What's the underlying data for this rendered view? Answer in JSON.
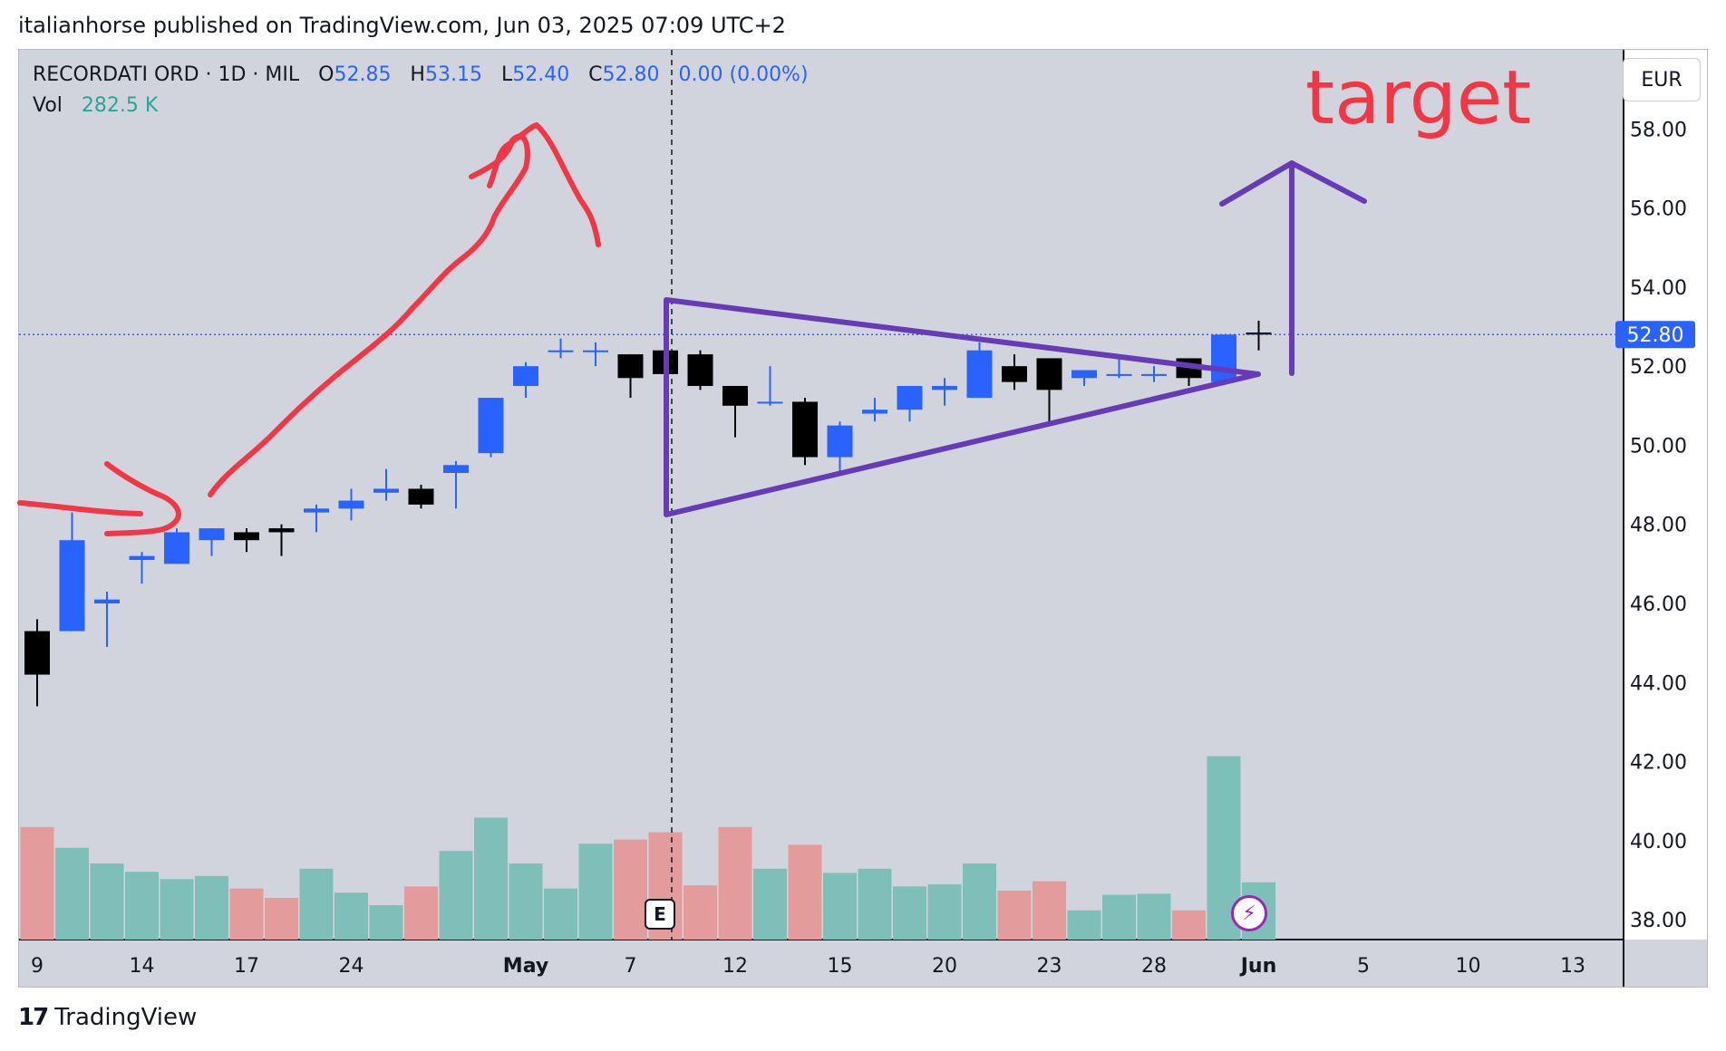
{
  "header": {
    "published_line": "italianhorse published on TradingView.com, Jun 03, 2025 07:09 UTC+2"
  },
  "legend": {
    "symbol": "RECORDATI ORD · 1D · MIL",
    "o_label": "O",
    "o_value": "52.85",
    "h_label": "H",
    "h_value": "53.15",
    "l_label": "L",
    "l_value": "52.40",
    "c_label": "C",
    "c_value": "52.80",
    "change": "0.00 (0.00%)",
    "vol_label": "Vol",
    "vol_value": "282.5 K"
  },
  "currency_button": "EUR",
  "annotation_text": "target",
  "earnings_badge": "E",
  "footer": {
    "logo_mark": "17",
    "brand": "TradingView"
  },
  "colors": {
    "background": "#d1d4dc",
    "up_candle": "#2962ff",
    "down_candle": "#000000",
    "vol_up": "#7fbfba",
    "vol_down": "#e39b9b",
    "drawing_red": "#f23645",
    "drawing_purple": "#673ab7",
    "price_label_bg": "#2962ff"
  },
  "chart_data": {
    "type": "candlestick",
    "y_axis": {
      "range": [
        37.5,
        60.0
      ],
      "ticks": [
        "58.00",
        "56.00",
        "54.00",
        "52.00",
        "50.00",
        "48.00",
        "46.00",
        "44.00",
        "42.00",
        "40.00",
        "38.00"
      ],
      "current_price_label": "52.80"
    },
    "x_axis": {
      "ticks": [
        {
          "label": "9",
          "i": 0
        },
        {
          "label": "14",
          "i": 3
        },
        {
          "label": "17",
          "i": 6
        },
        {
          "label": "24",
          "i": 9
        },
        {
          "label": "May",
          "i": 14
        },
        {
          "label": "7",
          "i": 17
        },
        {
          "label": "12",
          "i": 20
        },
        {
          "label": "15",
          "i": 23
        },
        {
          "label": "20",
          "i": 26
        },
        {
          "label": "23",
          "i": 29
        },
        {
          "label": "28",
          "i": 32
        },
        {
          "label": "Jun",
          "i": 35
        },
        {
          "label": "5",
          "i": 38
        },
        {
          "label": "10",
          "i": 41
        },
        {
          "label": "13",
          "i": 44
        }
      ]
    },
    "candles": [
      {
        "o": 45.3,
        "h": 45.6,
        "l": 43.4,
        "c": 44.2
      },
      {
        "o": 45.3,
        "h": 48.3,
        "l": 45.3,
        "c": 47.6
      },
      {
        "o": 46.0,
        "h": 46.3,
        "l": 44.9,
        "c": 46.1
      },
      {
        "o": 47.1,
        "h": 47.3,
        "l": 46.5,
        "c": 47.2
      },
      {
        "o": 47.0,
        "h": 47.9,
        "l": 47.0,
        "c": 47.8
      },
      {
        "o": 47.6,
        "h": 47.9,
        "l": 47.2,
        "c": 47.9
      },
      {
        "o": 47.8,
        "h": 47.9,
        "l": 47.3,
        "c": 47.6
      },
      {
        "o": 47.9,
        "h": 48.0,
        "l": 47.2,
        "c": 47.8
      },
      {
        "o": 48.3,
        "h": 48.5,
        "l": 47.8,
        "c": 48.4
      },
      {
        "o": 48.4,
        "h": 48.9,
        "l": 48.1,
        "c": 48.6
      },
      {
        "o": 48.8,
        "h": 49.4,
        "l": 48.6,
        "c": 48.9
      },
      {
        "o": 48.9,
        "h": 49.0,
        "l": 48.4,
        "c": 48.5
      },
      {
        "o": 49.3,
        "h": 49.6,
        "l": 48.4,
        "c": 49.5
      },
      {
        "o": 49.8,
        "h": 51.2,
        "l": 49.7,
        "c": 51.2
      },
      {
        "o": 51.5,
        "h": 52.1,
        "l": 51.2,
        "c": 52.0
      },
      {
        "o": 52.4,
        "h": 52.7,
        "l": 52.2,
        "c": 52.4
      },
      {
        "o": 52.4,
        "h": 52.6,
        "l": 52.0,
        "c": 52.4
      },
      {
        "o": 52.3,
        "h": 52.3,
        "l": 51.2,
        "c": 51.7
      },
      {
        "o": 52.4,
        "h": 52.5,
        "l": 51.5,
        "c": 51.8
      },
      {
        "o": 52.3,
        "h": 52.4,
        "l": 51.4,
        "c": 51.5
      },
      {
        "o": 51.5,
        "h": 51.5,
        "l": 50.2,
        "c": 51.0
      },
      {
        "o": 51.1,
        "h": 52.0,
        "l": 51.0,
        "c": 51.1
      },
      {
        "o": 51.1,
        "h": 51.2,
        "l": 49.5,
        "c": 49.7
      },
      {
        "o": 49.7,
        "h": 50.6,
        "l": 49.3,
        "c": 50.5
      },
      {
        "o": 50.8,
        "h": 51.2,
        "l": 50.6,
        "c": 50.9
      },
      {
        "o": 50.9,
        "h": 51.5,
        "l": 50.6,
        "c": 51.5
      },
      {
        "o": 51.4,
        "h": 51.7,
        "l": 51.0,
        "c": 51.5
      },
      {
        "o": 51.2,
        "h": 52.6,
        "l": 51.2,
        "c": 52.4
      },
      {
        "o": 52.0,
        "h": 52.3,
        "l": 51.4,
        "c": 51.6
      },
      {
        "o": 52.2,
        "h": 52.2,
        "l": 50.5,
        "c": 51.4
      },
      {
        "o": 51.7,
        "h": 51.9,
        "l": 51.5,
        "c": 51.9
      },
      {
        "o": 51.8,
        "h": 52.2,
        "l": 51.7,
        "c": 51.8
      },
      {
        "o": 51.8,
        "h": 52.0,
        "l": 51.6,
        "c": 51.8
      },
      {
        "o": 52.2,
        "h": 52.2,
        "l": 51.5,
        "c": 51.7
      },
      {
        "o": 51.6,
        "h": 52.8,
        "l": 51.6,
        "c": 52.8
      },
      {
        "o": 52.85,
        "h": 53.15,
        "l": 52.4,
        "c": 52.8
      }
    ],
    "volume_scale_max": 1000,
    "volume": [
      {
        "v": 540,
        "up": false
      },
      {
        "v": 440,
        "up": true
      },
      {
        "v": 365,
        "up": true
      },
      {
        "v": 325,
        "up": true
      },
      {
        "v": 290,
        "up": true
      },
      {
        "v": 305,
        "up": true
      },
      {
        "v": 245,
        "up": false
      },
      {
        "v": 200,
        "up": false
      },
      {
        "v": 340,
        "up": true
      },
      {
        "v": 225,
        "up": true
      },
      {
        "v": 165,
        "up": true
      },
      {
        "v": 255,
        "up": false
      },
      {
        "v": 425,
        "up": true
      },
      {
        "v": 585,
        "up": true
      },
      {
        "v": 365,
        "up": true
      },
      {
        "v": 245,
        "up": true
      },
      {
        "v": 460,
        "up": true
      },
      {
        "v": 480,
        "up": false
      },
      {
        "v": 515,
        "up": false
      },
      {
        "v": 260,
        "up": false
      },
      {
        "v": 540,
        "up": false
      },
      {
        "v": 340,
        "up": true
      },
      {
        "v": 455,
        "up": false
      },
      {
        "v": 320,
        "up": true
      },
      {
        "v": 340,
        "up": true
      },
      {
        "v": 255,
        "up": true
      },
      {
        "v": 265,
        "up": true
      },
      {
        "v": 365,
        "up": true
      },
      {
        "v": 235,
        "up": false
      },
      {
        "v": 280,
        "up": false
      },
      {
        "v": 140,
        "up": true
      },
      {
        "v": 215,
        "up": true
      },
      {
        "v": 220,
        "up": true
      },
      {
        "v": 140,
        "up": false
      },
      {
        "v": 880,
        "up": true
      },
      {
        "v": 275,
        "up": true
      }
    ],
    "earnings_marker_index": 18,
    "grid": false
  }
}
